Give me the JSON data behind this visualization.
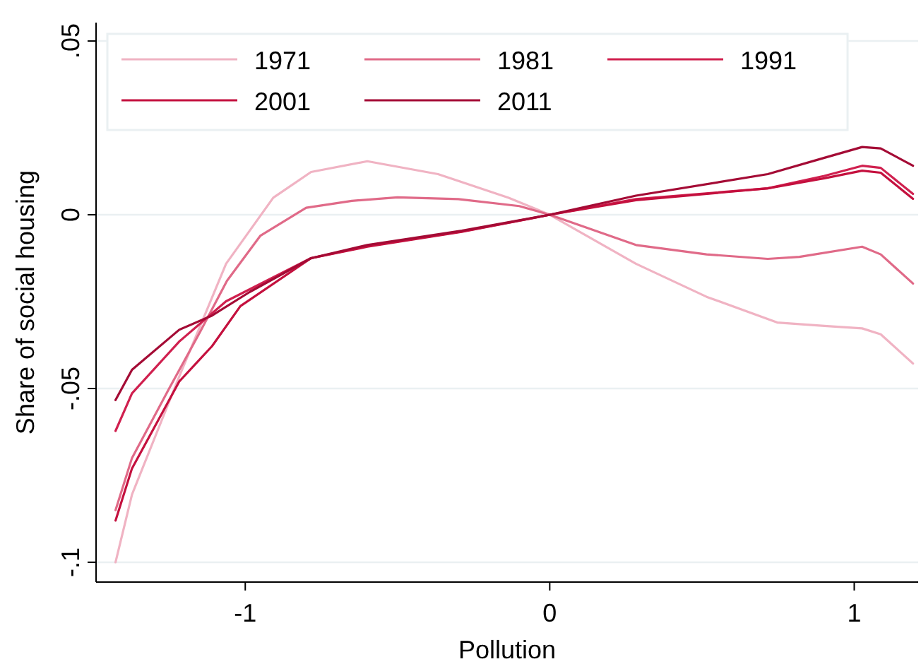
{
  "chart_data": {
    "type": "line",
    "xlabel": "Pollution",
    "ylabel": "Share of social housing",
    "xlim": [
      -1.49,
      1.21
    ],
    "ylim": [
      -0.1057,
      0.0553
    ],
    "xticks": [
      -1,
      0,
      1
    ],
    "yticks": [
      {
        "value": 0.05,
        "label": ".05"
      },
      0,
      {
        "value": -0.05,
        "label": "-.05"
      },
      {
        "value": -0.1,
        "label": "-.1"
      }
    ],
    "grid": "y",
    "legend": "top left",
    "marker": "none",
    "line_style": "solid",
    "series": [
      {
        "name": "1971",
        "color": "#f0b3c3",
        "x": [
          -1.426,
          -1.372,
          -1.217,
          -1.063,
          -0.908,
          -0.784,
          -0.599,
          -0.367,
          -0.135,
          0,
          0.283,
          0.515,
          0.747,
          0.902,
          1.026,
          1.087,
          1.193
        ],
        "values": [
          -0.1,
          -0.0805,
          -0.0466,
          -0.0141,
          0.0049,
          0.0123,
          0.0154,
          0.0117,
          0.0049,
          0,
          -0.0141,
          -0.0236,
          -0.031,
          -0.032,
          -0.0327,
          -0.0344,
          -0.0428
        ]
      },
      {
        "name": "1981",
        "color": "#e06a88",
        "x": [
          -1.426,
          -1.372,
          -1.25,
          -1.15,
          -1.06,
          -0.95,
          -0.8,
          -0.65,
          -0.5,
          -0.3,
          -0.1,
          0,
          0.283,
          0.515,
          0.716,
          0.82,
          1.026,
          1.087,
          1.193
        ],
        "values": [
          -0.085,
          -0.07,
          -0.05,
          -0.034,
          -0.019,
          -0.006,
          0.002,
          0.004,
          0.005,
          0.0045,
          0.0025,
          0,
          -0.0087,
          -0.0114,
          -0.0127,
          -0.0121,
          -0.0092,
          -0.0114,
          -0.0198
        ]
      },
      {
        "name": "1991",
        "color": "#d0204f",
        "x": [
          -1.426,
          -1.372,
          -1.217,
          -1.063,
          -0.784,
          -0.599,
          -0.289,
          0,
          0.283,
          0.716,
          0.902,
          1.026,
          1.087,
          1.193
        ],
        "values": [
          -0.0622,
          -0.0514,
          -0.0365,
          -0.0249,
          -0.0125,
          -0.009,
          -0.0048,
          0,
          0.0045,
          0.0076,
          0.0112,
          0.0141,
          0.0135,
          0.006
        ]
      },
      {
        "name": "2001",
        "color": "#c4103e",
        "x": [
          -1.426,
          -1.372,
          -1.217,
          -1.109,
          -1.016,
          -0.784,
          -0.599,
          -0.289,
          0,
          0.283,
          0.716,
          0.902,
          1.026,
          1.087,
          1.193
        ],
        "values": [
          -0.088,
          -0.073,
          -0.048,
          -0.0378,
          -0.0263,
          -0.0125,
          -0.0092,
          -0.0049,
          0,
          0.0042,
          0.0076,
          0.0105,
          0.0127,
          0.0121,
          0.0046
        ]
      },
      {
        "name": "2011",
        "color": "#a40b35",
        "x": [
          -1.426,
          -1.372,
          -1.217,
          -1.109,
          -0.985,
          -0.784,
          -0.599,
          -0.289,
          0,
          0.283,
          0.716,
          0.902,
          1.026,
          1.087,
          1.193
        ],
        "values": [
          -0.0533,
          -0.0446,
          -0.0331,
          -0.029,
          -0.0222,
          -0.0125,
          -0.0087,
          -0.0046,
          0,
          0.0055,
          0.0117,
          0.0164,
          0.0195,
          0.0191,
          0.0141
        ]
      }
    ]
  }
}
